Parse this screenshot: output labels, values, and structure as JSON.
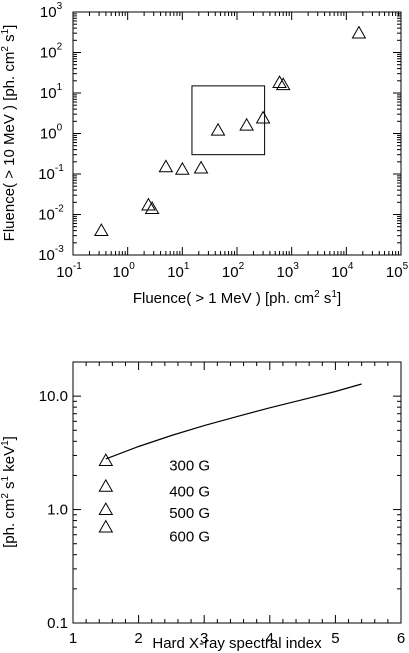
{
  "chart_data": [
    {
      "type": "scatter",
      "xlabel": {
        "pre": "Fluence( > 1 MeV ) [ph. cm",
        "sup1": "2",
        "mid": " s",
        "sup2": "1",
        "post": "]"
      },
      "ylabel": {
        "pre": "Fluence( > 10 MeV ) [ph. cm",
        "sup1": "2",
        "mid": " s",
        "sup2": "1",
        "post": "]"
      },
      "xscale": "log",
      "yscale": "log",
      "xlim": [
        0.1,
        100000
      ],
      "ylim": [
        0.001,
        1000
      ],
      "xticks": [
        {
          "base": "10",
          "exp": "-1"
        },
        {
          "base": "10",
          "exp": "0"
        },
        {
          "base": "10",
          "exp": "1"
        },
        {
          "base": "10",
          "exp": "2"
        },
        {
          "base": "10",
          "exp": "3"
        },
        {
          "base": "10",
          "exp": "4"
        },
        {
          "base": "10",
          "exp": "5"
        }
      ],
      "yticks": [
        {
          "base": "10",
          "exp": "-3"
        },
        {
          "base": "10",
          "exp": "-2"
        },
        {
          "base": "10",
          "exp": "-1"
        },
        {
          "base": "10",
          "exp": "0"
        },
        {
          "base": "10",
          "exp": "1"
        },
        {
          "base": "10",
          "exp": "2"
        },
        {
          "base": "10",
          "exp": "3"
        }
      ],
      "points": [
        {
          "x": 0.33,
          "y": 0.004
        },
        {
          "x": 2.4,
          "y": 0.017
        },
        {
          "x": 2.8,
          "y": 0.014
        },
        {
          "x": 5.0,
          "y": 0.15
        },
        {
          "x": 10.0,
          "y": 0.13
        },
        {
          "x": 22,
          "y": 0.14
        },
        {
          "x": 45,
          "y": 1.2
        },
        {
          "x": 150,
          "y": 1.6
        },
        {
          "x": 300,
          "y": 2.4
        },
        {
          "x": 600,
          "y": 18
        },
        {
          "x": 700,
          "y": 16
        },
        {
          "x": 17000,
          "y": 300
        }
      ],
      "box": {
        "x": [
          15,
          320
        ],
        "y": [
          0.3,
          15
        ]
      },
      "grid": false,
      "marker": "open-triangle"
    },
    {
      "type": "line",
      "xlabel": "Hard X-ray spectral index",
      "ylabel": {
        "pre": "[ph. cm",
        "sup1": "2",
        "mid": " s",
        "sup2": "1",
        "mid2": " keV",
        "sup3": "1",
        "post": "]"
      },
      "yscale": "log",
      "xlim": [
        1,
        6
      ],
      "ylim": [
        0.1,
        20
      ],
      "xticks": [
        "1",
        "2",
        "3",
        "4",
        "5",
        "6"
      ],
      "yticks": [
        {
          "v": 0.1,
          "label": "0.1"
        },
        {
          "v": 1.0,
          "label": "1.0"
        },
        {
          "v": 10.0,
          "label": "10.0"
        }
      ],
      "series": [
        {
          "x": [
            1.5,
            2.0,
            2.5,
            3.0,
            3.5,
            4.0,
            4.5,
            5.0,
            5.4
          ],
          "y": [
            2.8,
            3.6,
            4.5,
            5.5,
            6.6,
            7.9,
            9.3,
            11.0,
            12.8
          ]
        }
      ],
      "markers": [
        {
          "x": 1.5,
          "y": 2.7
        },
        {
          "x": 1.5,
          "y": 1.6
        },
        {
          "x": 1.5,
          "y": 1.0
        },
        {
          "x": 1.5,
          "y": 0.7
        }
      ],
      "annotations": [
        {
          "text": "300 G",
          "x": 3.0,
          "y": 2.45
        },
        {
          "text": "400 G",
          "x": 3.0,
          "y": 1.45
        },
        {
          "text": "500 G",
          "x": 3.0,
          "y": 0.93
        },
        {
          "text": "600 G",
          "x": 3.0,
          "y": 0.58
        }
      ],
      "grid": false,
      "marker": "open-triangle"
    }
  ]
}
